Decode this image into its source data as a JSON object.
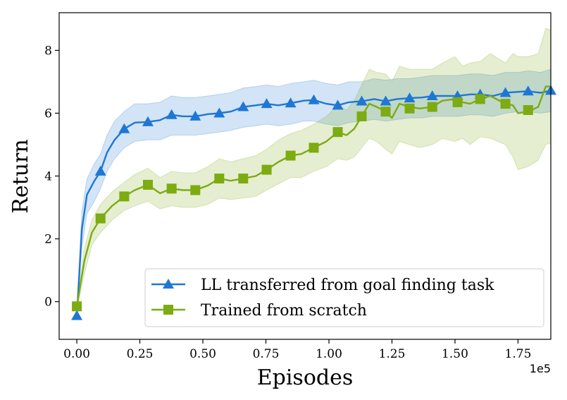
{
  "chart_data": {
    "type": "line",
    "title": "",
    "xlabel": "Episodes",
    "ylabel": "Return",
    "x_offset_label": "1e5",
    "xlim": [
      -0.07,
      1.88
    ],
    "ylim": [
      -1.2,
      9.2
    ],
    "xticks": [
      0.0,
      0.25,
      0.5,
      0.75,
      1.0,
      1.25,
      1.5,
      1.75
    ],
    "xtick_labels": [
      "0.00",
      "0.25",
      "0.50",
      "0.75",
      "1.00",
      "1.25",
      "1.50",
      "1.75"
    ],
    "yticks": [
      0,
      2,
      4,
      6,
      8
    ],
    "ytick_labels": [
      "0",
      "2",
      "4",
      "6",
      "8"
    ],
    "grid": false,
    "legend_position": "lower-right",
    "series": [
      {
        "name": "LL transferred from goal finding task",
        "color": "#1f77d4",
        "marker": "triangle",
        "x": [
          0.0,
          0.02,
          0.04,
          0.07,
          0.094,
          0.12,
          0.15,
          0.188,
          0.23,
          0.28,
          0.33,
          0.376,
          0.42,
          0.47,
          0.52,
          0.565,
          0.61,
          0.66,
          0.71,
          0.753,
          0.8,
          0.85,
          0.9,
          0.94,
          0.99,
          1.035,
          1.08,
          1.13,
          1.18,
          1.225,
          1.27,
          1.32,
          1.37,
          1.41,
          1.46,
          1.51,
          1.56,
          1.6,
          1.65,
          1.7,
          1.75,
          1.79,
          1.84,
          1.88
        ],
        "y": [
          -0.45,
          2.3,
          3.4,
          3.85,
          4.15,
          4.75,
          5.15,
          5.5,
          5.7,
          5.72,
          5.78,
          5.95,
          5.9,
          5.9,
          5.97,
          6.0,
          6.05,
          6.2,
          6.25,
          6.3,
          6.25,
          6.32,
          6.4,
          6.42,
          6.3,
          6.25,
          6.35,
          6.38,
          6.45,
          6.38,
          6.45,
          6.48,
          6.5,
          6.55,
          6.55,
          6.55,
          6.6,
          6.6,
          6.55,
          6.65,
          6.68,
          6.7,
          6.65,
          6.72
        ],
        "y_lower": [
          -0.55,
          1.7,
          2.8,
          3.2,
          3.6,
          4.15,
          4.55,
          4.9,
          5.1,
          5.15,
          5.15,
          5.3,
          5.3,
          5.3,
          5.35,
          5.4,
          5.45,
          5.55,
          5.6,
          5.65,
          5.6,
          5.65,
          5.75,
          5.75,
          5.65,
          5.6,
          5.7,
          5.75,
          5.8,
          5.75,
          5.8,
          5.85,
          5.85,
          5.9,
          5.9,
          5.9,
          5.95,
          5.95,
          5.9,
          6.0,
          6.05,
          6.05,
          6.0,
          6.05
        ],
        "y_upper": [
          -0.35,
          2.9,
          3.9,
          4.4,
          4.7,
          5.3,
          5.75,
          6.05,
          6.3,
          6.3,
          6.35,
          6.55,
          6.5,
          6.5,
          6.55,
          6.6,
          6.65,
          6.8,
          6.85,
          6.9,
          6.85,
          6.95,
          7.0,
          7.05,
          6.95,
          6.9,
          7.0,
          7.0,
          7.1,
          7.05,
          7.1,
          7.1,
          7.15,
          7.2,
          7.2,
          7.2,
          7.25,
          7.25,
          7.2,
          7.3,
          7.3,
          7.35,
          7.3,
          7.4
        ],
        "markers_x": [
          0.0,
          0.094,
          0.188,
          0.282,
          0.376,
          0.47,
          0.565,
          0.66,
          0.753,
          0.848,
          0.94,
          1.035,
          1.13,
          1.225,
          1.32,
          1.41,
          1.51,
          1.6,
          1.7,
          1.79,
          1.88
        ],
        "markers_y": [
          -0.45,
          4.15,
          5.5,
          5.72,
          5.95,
          5.9,
          6.0,
          6.2,
          6.3,
          6.32,
          6.42,
          6.25,
          6.38,
          6.38,
          6.48,
          6.55,
          6.55,
          6.6,
          6.65,
          6.7,
          6.72
        ]
      },
      {
        "name": "Trained from scratch",
        "color": "#7cab12",
        "marker": "square",
        "x": [
          0.0,
          0.03,
          0.06,
          0.094,
          0.14,
          0.188,
          0.23,
          0.282,
          0.33,
          0.376,
          0.42,
          0.47,
          0.52,
          0.565,
          0.61,
          0.66,
          0.71,
          0.753,
          0.8,
          0.848,
          0.89,
          0.94,
          0.99,
          1.035,
          1.07,
          1.1,
          1.13,
          1.16,
          1.19,
          1.225,
          1.25,
          1.28,
          1.32,
          1.36,
          1.41,
          1.45,
          1.5,
          1.53,
          1.56,
          1.6,
          1.64,
          1.7,
          1.73,
          1.75,
          1.79,
          1.83,
          1.86,
          1.88
        ],
        "y": [
          -0.15,
          1.3,
          2.2,
          2.65,
          3.05,
          3.35,
          3.55,
          3.72,
          3.45,
          3.6,
          3.55,
          3.55,
          3.7,
          3.92,
          3.85,
          3.92,
          4.0,
          4.2,
          4.45,
          4.65,
          4.7,
          4.9,
          5.1,
          5.4,
          5.3,
          5.5,
          5.9,
          6.3,
          6.2,
          6.05,
          5.85,
          6.3,
          6.2,
          6.15,
          6.2,
          6.4,
          6.45,
          6.35,
          6.3,
          6.45,
          6.55,
          6.3,
          6.25,
          6.0,
          6.05,
          6.2,
          6.85,
          6.85
        ],
        "y_lower": [
          -0.25,
          0.9,
          1.8,
          2.2,
          2.6,
          2.9,
          3.05,
          3.2,
          2.95,
          3.05,
          3.0,
          3.0,
          3.1,
          3.3,
          3.25,
          3.3,
          3.35,
          3.55,
          3.75,
          3.95,
          3.95,
          4.15,
          4.3,
          4.55,
          4.5,
          4.6,
          4.9,
          5.2,
          5.1,
          4.85,
          4.7,
          5.1,
          5.0,
          4.9,
          5.0,
          5.2,
          5.1,
          5.2,
          5.0,
          5.25,
          5.2,
          5.0,
          4.6,
          4.2,
          4.3,
          4.5,
          5.0,
          5.05
        ],
        "y_upper": [
          -0.05,
          1.7,
          2.6,
          3.1,
          3.5,
          3.8,
          4.05,
          4.25,
          3.95,
          4.15,
          4.1,
          4.1,
          4.3,
          4.55,
          4.45,
          4.55,
          4.65,
          4.85,
          5.15,
          5.35,
          5.45,
          5.65,
          5.9,
          6.25,
          6.1,
          6.4,
          6.9,
          7.4,
          7.3,
          7.25,
          7.0,
          7.5,
          7.4,
          7.4,
          7.4,
          7.6,
          7.8,
          7.5,
          7.6,
          7.65,
          7.9,
          7.6,
          7.9,
          7.8,
          7.8,
          7.9,
          8.7,
          8.65
        ],
        "markers_x": [
          0.0,
          0.094,
          0.188,
          0.282,
          0.376,
          0.47,
          0.565,
          0.66,
          0.753,
          0.848,
          0.94,
          1.035,
          1.13,
          1.225,
          1.32,
          1.41,
          1.51,
          1.6,
          1.7,
          1.79
        ],
        "markers_y": [
          -0.15,
          2.65,
          3.35,
          3.72,
          3.6,
          3.55,
          3.92,
          3.92,
          4.2,
          4.65,
          4.9,
          5.4,
          5.9,
          6.05,
          6.15,
          6.2,
          6.35,
          6.45,
          6.3,
          6.1
        ]
      }
    ]
  }
}
